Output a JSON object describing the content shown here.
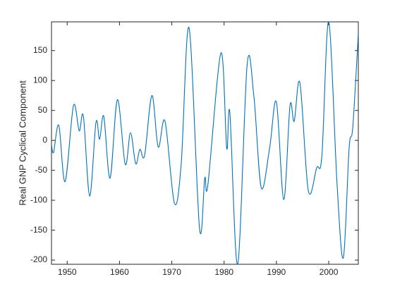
{
  "chart_data": {
    "type": "line",
    "ylabel": "Real GNP Cyclical Component",
    "x": [
      1947.0,
      1947.4,
      1948.4,
      1949.6,
      1951.2,
      1952.3,
      1953.1,
      1954.3,
      1955.5,
      1956.2,
      1957.0,
      1958.2,
      1959.6,
      1961.1,
      1962.1,
      1963.1,
      1963.9,
      1964.8,
      1966.2,
      1967.4,
      1968.7,
      1970.5,
      1971.8,
      1973.3,
      1975.3,
      1976.3,
      1976.9,
      1979.4,
      1980.5,
      1981.1,
      1982.6,
      1984.4,
      1985.7,
      1987.1,
      1988.7,
      1990.0,
      1991.4,
      1992.6,
      1993.4,
      1994.5,
      1996.1,
      1997.7,
      1998.7,
      2000.0,
      2001.6,
      2002.8,
      2003.9,
      2004.6,
      2005.66
    ],
    "series": [
      {
        "color": "#0072bd",
        "values": [
          -7,
          -20,
          25,
          -69,
          58,
          16,
          40,
          -93,
          30,
          2,
          40,
          -63,
          68,
          -40,
          13,
          -39,
          -15,
          -25,
          75,
          -11,
          32,
          -105,
          -39,
          188,
          -147,
          -63,
          -74,
          146,
          -13,
          46,
          -207,
          126,
          73,
          -79,
          -13,
          64,
          -99,
          58,
          32,
          96,
          -84,
          -46,
          -25,
          198,
          -74,
          -196,
          -13,
          22,
          178
        ]
      }
    ],
    "xlim": [
      1947,
      2005.66
    ],
    "xticks": [
      1950,
      1960,
      1970,
      1980,
      1990,
      2000
    ],
    "ylim": [
      -207,
      198
    ],
    "yticks": [
      -200,
      -150,
      -100,
      -50,
      0,
      50,
      100,
      150
    ]
  }
}
